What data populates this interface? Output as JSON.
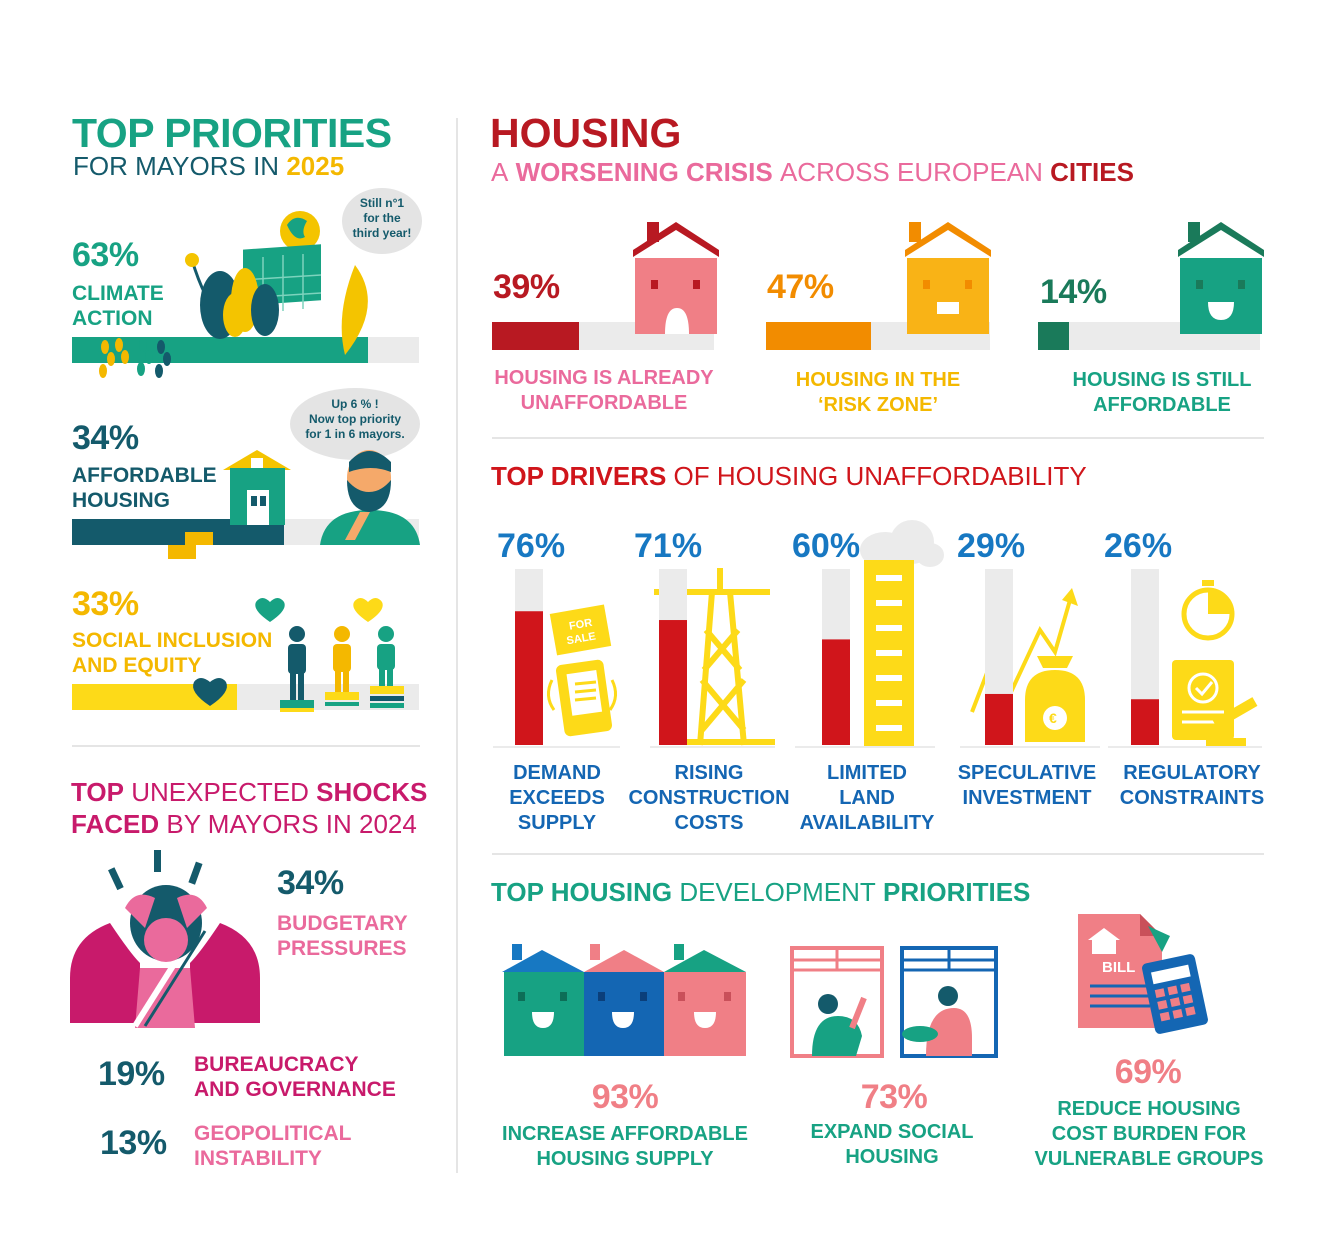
{
  "priorities": {
    "title": "TOP PRIORITIES",
    "subtitle_prefix": "FOR MAYORS IN",
    "subtitle_year": "2025",
    "items": [
      {
        "pct": "63%",
        "label_line1": "CLIMATE",
        "label_line2": "ACTION",
        "bubble": [
          "Still n°1",
          "for the",
          "third year!"
        ],
        "value": 63
      },
      {
        "pct": "34%",
        "label_line1": "AFFORDABLE",
        "label_line2": "HOUSING",
        "bubble": [
          "Up 6 % !",
          "Now top priority",
          "for 1 in 6 mayors."
        ],
        "value": 34
      },
      {
        "pct": "33%",
        "label_line1": "SOCIAL INCLUSION",
        "label_line2": "AND EQUITY",
        "value": 33
      }
    ]
  },
  "shocks": {
    "title_top": "TOP",
    "title_unexpected": "UNEXPECTED",
    "title_shocks": "SHOCKS",
    "title_faced": "FACED",
    "title_rest": "BY MAYORS IN 2024",
    "items": [
      {
        "pct": "34%",
        "label_line1": "BUDGETARY",
        "label_line2": "PRESSURES"
      },
      {
        "pct": "19%",
        "label_line1": "BUREAUCRACY",
        "label_line2": "AND GOVERNANCE"
      },
      {
        "pct": "13%",
        "label_line1": "GEOPOLITICAL",
        "label_line2": "INSTABILITY"
      }
    ]
  },
  "housing": {
    "title": "HOUSING",
    "subtitle_a": "A",
    "subtitle_worsening": "WORSENING CRISIS",
    "subtitle_across": "ACROSS EUROPEAN",
    "subtitle_cities": "CITIES",
    "status": [
      {
        "pct": "39%",
        "value": 39,
        "label_line1": "HOUSING IS ALREADY",
        "label_line2": "UNAFFORDABLE",
        "color": "#b81922"
      },
      {
        "pct": "47%",
        "value": 47,
        "label_line1": "HOUSING IN THE",
        "label_line2": "‘RISK ZONE’",
        "color": "#f28c00"
      },
      {
        "pct": "14%",
        "value": 14,
        "label_line1": "HOUSING IS STILL",
        "label_line2": "AFFORDABLE",
        "color": "#1a7a5a"
      }
    ]
  },
  "drivers": {
    "title_strong": "TOP DRIVERS",
    "title_rest": "OF HOUSING UNAFFORDABILITY",
    "sale_sign_line1": "FOR",
    "sale_sign_line2": "SALE"
  },
  "dev": {
    "title_a": "TOP HOUSING",
    "title_b": "DEVELOPMENT",
    "title_c": "PRIORITIES",
    "bill_label": "BILL",
    "items": [
      {
        "pct": "93%",
        "label_line1": "INCREASE AFFORDABLE",
        "label_line2": "HOUSING SUPPLY",
        "label_line3": ""
      },
      {
        "pct": "73%",
        "label_line1": "EXPAND SOCIAL",
        "label_line2": "HOUSING",
        "label_line3": ""
      },
      {
        "pct": "69%",
        "label_line1": "REDUCE HOUSING",
        "label_line2": "COST BURDEN FOR",
        "label_line3": "VULNERABLE GROUPS"
      }
    ]
  },
  "chart_data": {
    "type": "bar",
    "title": "TOP DRIVERS OF HOUSING UNAFFORDABILITY",
    "categories": [
      "DEMAND EXCEEDS SUPPLY",
      "RISING CONSTRUCTION COSTS",
      "LIMITED LAND AVAILABILITY",
      "SPECULATIVE INVESTMENT",
      "REGULATORY CONSTRAINTS"
    ],
    "category_lines": [
      [
        "DEMAND",
        "EXCEEDS",
        "SUPPLY"
      ],
      [
        "RISING",
        "CONSTRUCTION",
        "COSTS"
      ],
      [
        "LIMITED",
        "LAND",
        "AVAILABILITY"
      ],
      [
        "SPECULATIVE",
        "INVESTMENT"
      ],
      [
        "REGULATORY",
        "CONSTRAINTS"
      ]
    ],
    "values": [
      76,
      71,
      60,
      29,
      26
    ],
    "value_labels": [
      "76%",
      "71%",
      "60%",
      "29%",
      "26%"
    ],
    "ylim": [
      0,
      100
    ],
    "bar_color": "#d0151b",
    "track_color": "#ebebeb"
  }
}
